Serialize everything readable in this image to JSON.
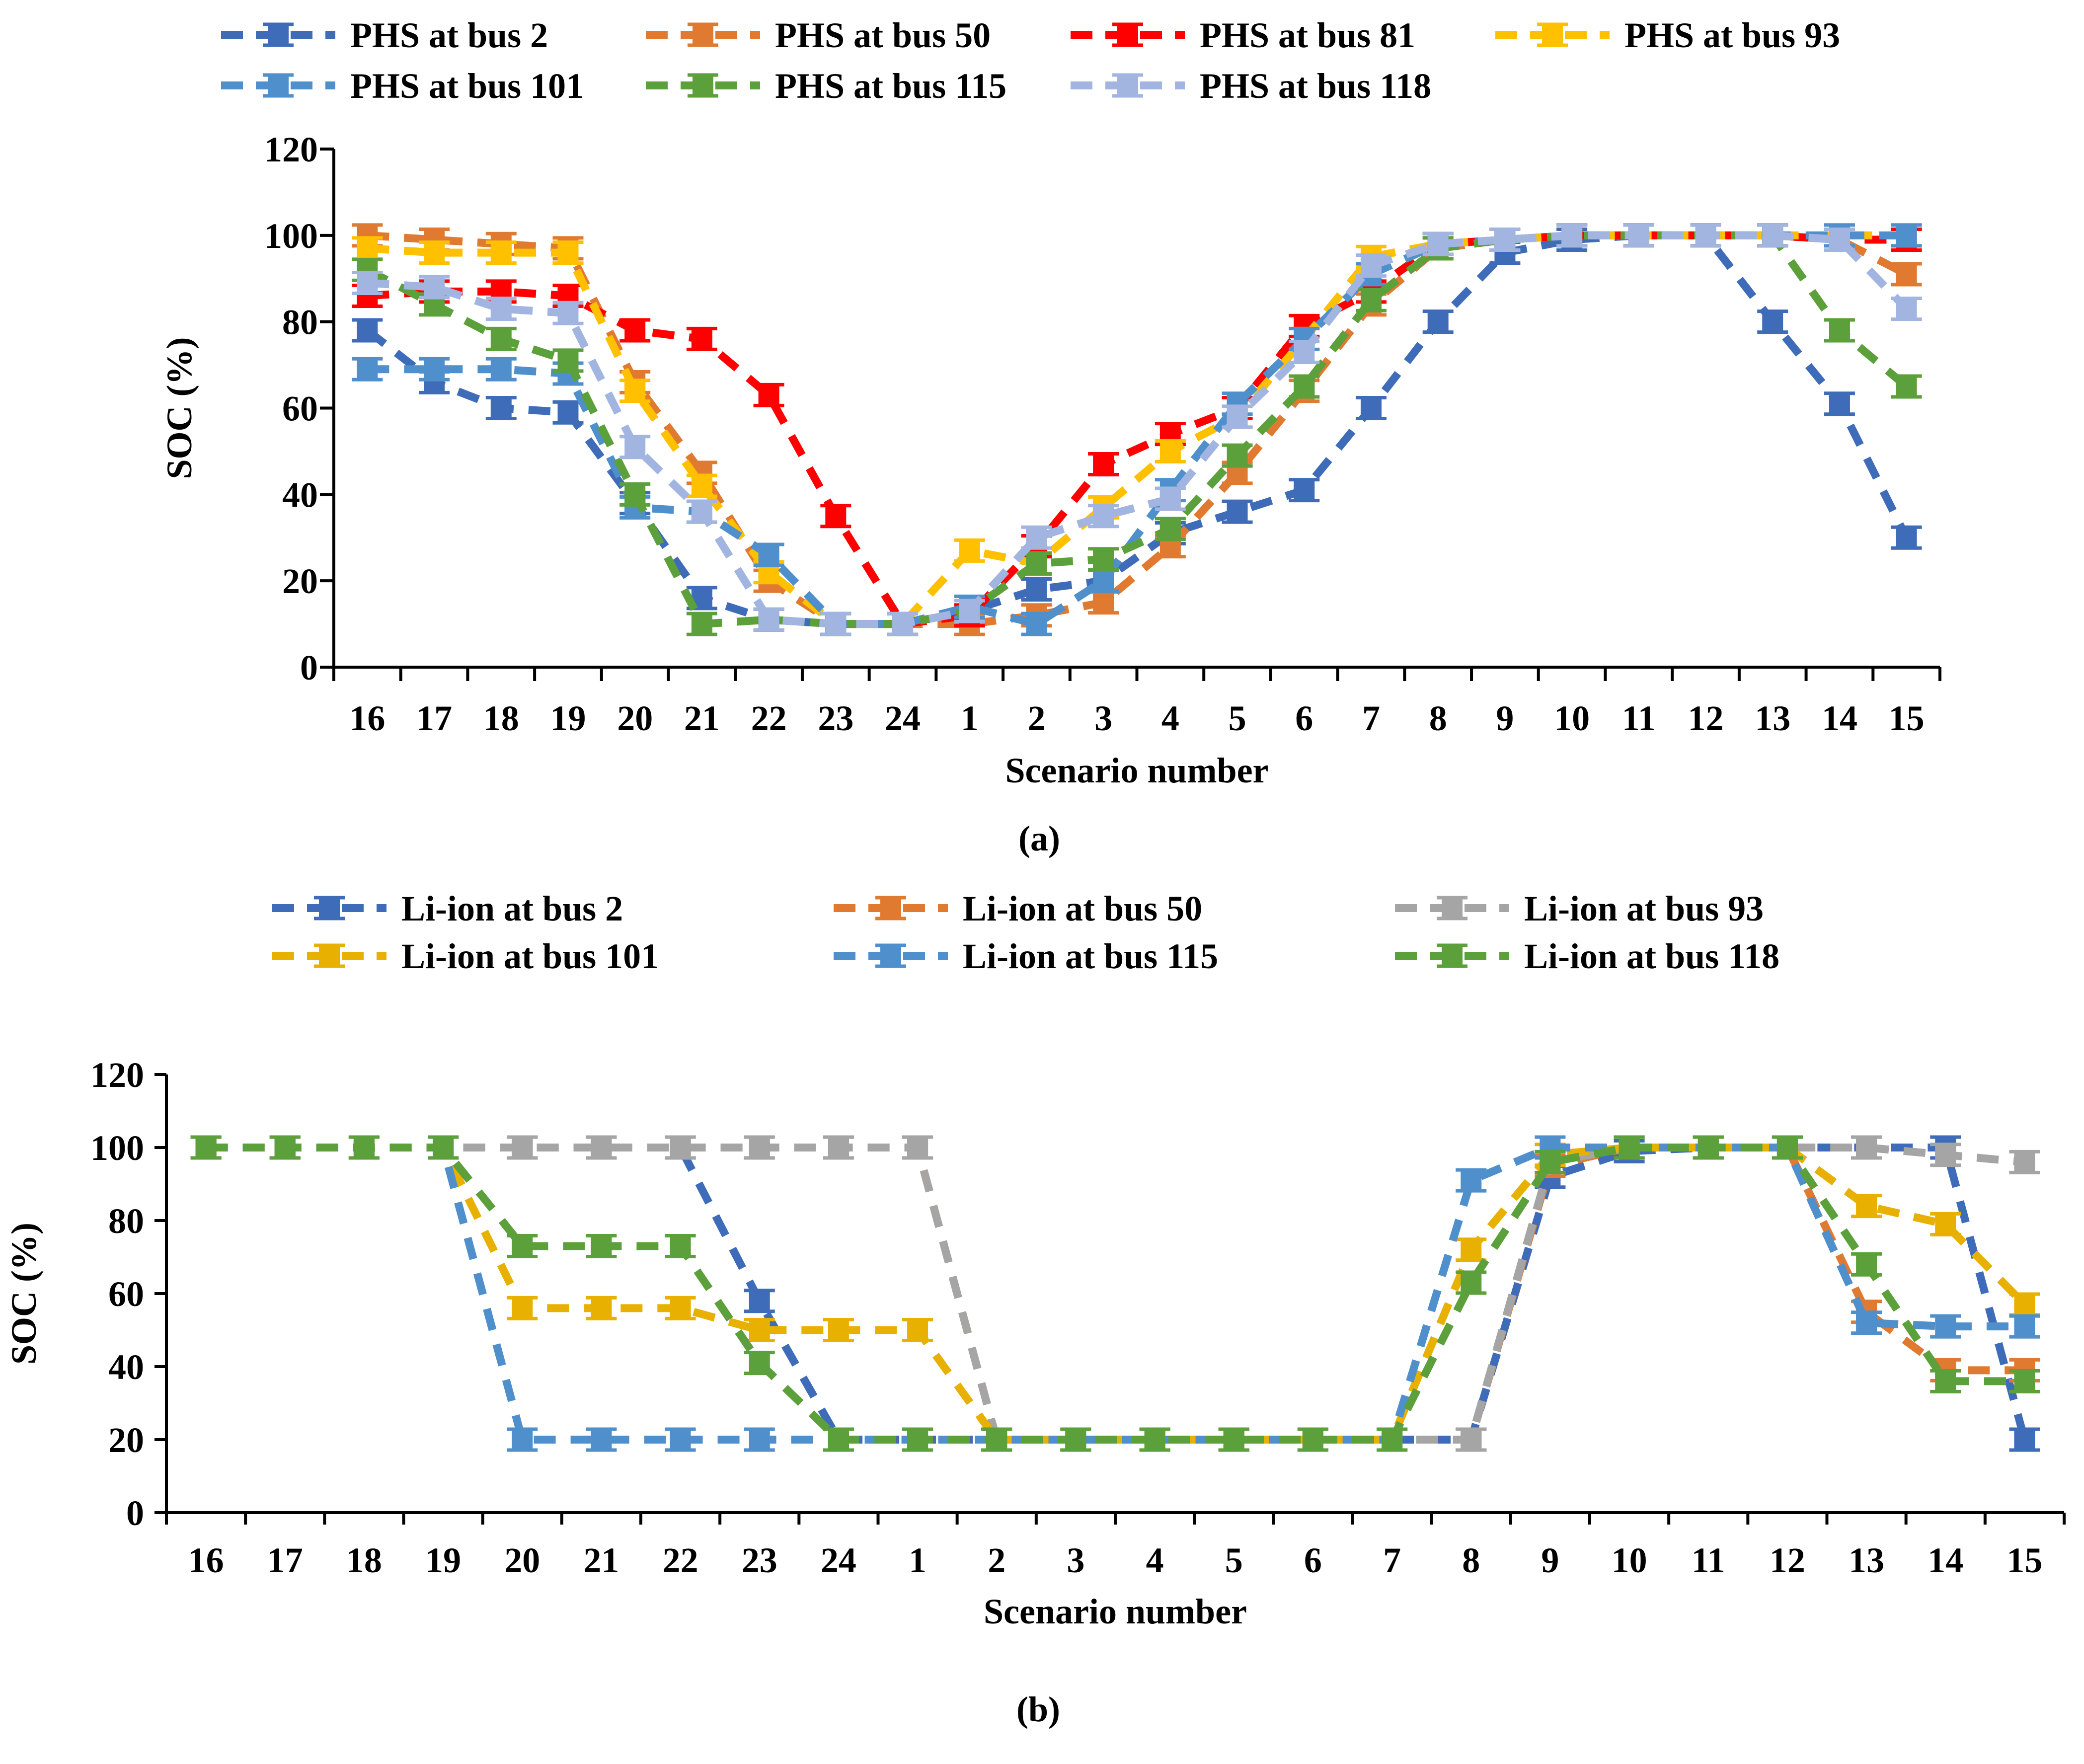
{
  "figure": {
    "panels": [
      {
        "label": "(a)"
      },
      {
        "label": "(b)"
      }
    ]
  },
  "chart_data": [
    {
      "type": "line",
      "panel_label": "(a)",
      "categories": [
        "16",
        "17",
        "18",
        "19",
        "20",
        "21",
        "22",
        "23",
        "24",
        "1",
        "2",
        "3",
        "4",
        "5",
        "6",
        "7",
        "8",
        "9",
        "10",
        "11",
        "12",
        "13",
        "14",
        "15"
      ],
      "xlabel": "Scenario number",
      "ylabel": "SOC (%)",
      "ylim": [
        0,
        120
      ],
      "yticks": [
        0,
        20,
        40,
        60,
        80,
        100,
        120
      ],
      "grid": false,
      "legend_position": "top",
      "series": [
        {
          "name": "PHS at bus 2",
          "color": "#3f6cb8",
          "values": [
            78,
            66,
            60,
            59,
            38,
            16,
            11,
            10,
            10,
            13,
            18,
            20,
            31,
            36,
            41,
            60,
            80,
            96,
            99,
            100,
            100,
            80,
            61,
            30
          ]
        },
        {
          "name": "PHS at bus 50",
          "color": "#e07a30",
          "values": [
            100,
            99,
            98,
            97,
            66,
            45,
            20,
            10,
            10,
            10,
            12,
            15,
            28,
            45,
            64,
            84,
            97,
            99,
            100,
            100,
            100,
            100,
            99,
            91
          ]
        },
        {
          "name": "PHS at bus 81",
          "color": "#ff0000",
          "values": [
            86,
            87,
            87,
            86,
            78,
            76,
            63,
            35,
            10,
            12,
            28,
            47,
            54,
            60,
            79,
            87,
            98,
            99,
            100,
            100,
            100,
            100,
            99,
            99
          ]
        },
        {
          "name": "PHS at bus 93",
          "color": "#ffc000",
          "values": [
            97,
            96,
            96,
            96,
            64,
            42,
            22,
            10,
            10,
            27,
            24,
            37,
            50,
            58,
            76,
            95,
            98,
            99,
            100,
            100,
            100,
            100,
            100,
            100
          ]
        },
        {
          "name": "PHS at bus 101",
          "color": "#4f8fcc",
          "values": [
            69,
            69,
            69,
            68,
            37,
            36,
            26,
            10,
            10,
            14,
            10,
            20,
            41,
            61,
            76,
            91,
            98,
            99,
            100,
            100,
            100,
            100,
            100,
            100
          ]
        },
        {
          "name": "PHS at bus 115",
          "color": "#5ba03a",
          "values": [
            92,
            84,
            76,
            71,
            40,
            10,
            11,
            10,
            10,
            13,
            24,
            25,
            32,
            49,
            65,
            85,
            97,
            99,
            100,
            100,
            100,
            100,
            78,
            65
          ]
        },
        {
          "name": "PHS at bus 118",
          "color": "#a2b4e0",
          "values": [
            89,
            88,
            83,
            82,
            51,
            36,
            11,
            10,
            10,
            13,
            30,
            35,
            39,
            58,
            73,
            93,
            98,
            99,
            100,
            100,
            100,
            100,
            99,
            83
          ]
        }
      ]
    },
    {
      "type": "line",
      "panel_label": "(b)",
      "categories": [
        "16",
        "17",
        "18",
        "19",
        "20",
        "21",
        "22",
        "23",
        "24",
        "1",
        "2",
        "3",
        "4",
        "5",
        "6",
        "7",
        "8",
        "9",
        "10",
        "11",
        "12",
        "13",
        "14",
        "15"
      ],
      "xlabel": "Scenario number",
      "ylabel": "SOC (%)",
      "ylim": [
        0,
        120
      ],
      "yticks": [
        0,
        20,
        40,
        60,
        80,
        100,
        120
      ],
      "grid": false,
      "legend_position": "top",
      "series": [
        {
          "name": "Li-ion at bus 2",
          "color": "#3f6cb8",
          "values": [
            100,
            100,
            100,
            100,
            100,
            100,
            100,
            58,
            20,
            20,
            20,
            20,
            20,
            20,
            20,
            20,
            20,
            92,
            99,
            100,
            100,
            100,
            100,
            20
          ]
        },
        {
          "name": "Li-ion at bus 50",
          "color": "#e07a30",
          "values": [
            100,
            100,
            100,
            100,
            100,
            100,
            100,
            100,
            100,
            100,
            20,
            20,
            20,
            20,
            20,
            20,
            20,
            95,
            100,
            100,
            100,
            55,
            39,
            39
          ]
        },
        {
          "name": "Li-ion at bus 93",
          "color": "#a5a5a5",
          "values": [
            100,
            100,
            100,
            100,
            100,
            100,
            100,
            100,
            100,
            100,
            20,
            20,
            20,
            20,
            20,
            20,
            20,
            96,
            100,
            100,
            100,
            100,
            98,
            96
          ]
        },
        {
          "name": "Li-ion at bus 101",
          "color": "#e8b000",
          "values": [
            100,
            100,
            100,
            100,
            56,
            56,
            56,
            50,
            50,
            50,
            20,
            20,
            20,
            20,
            20,
            20,
            72,
            98,
            100,
            100,
            100,
            84,
            79,
            57
          ]
        },
        {
          "name": "Li-ion at bus 115",
          "color": "#4f8fcc",
          "values": [
            100,
            100,
            100,
            100,
            20,
            20,
            20,
            20,
            20,
            20,
            20,
            20,
            20,
            20,
            20,
            20,
            91,
            100,
            100,
            100,
            100,
            52,
            51,
            51
          ]
        },
        {
          "name": "Li-ion at bus 118",
          "color": "#5ba03a",
          "values": [
            100,
            100,
            100,
            100,
            73,
            73,
            73,
            41,
            20,
            20,
            20,
            20,
            20,
            20,
            20,
            20,
            63,
            96,
            100,
            100,
            100,
            68,
            36,
            36
          ]
        }
      ]
    }
  ]
}
